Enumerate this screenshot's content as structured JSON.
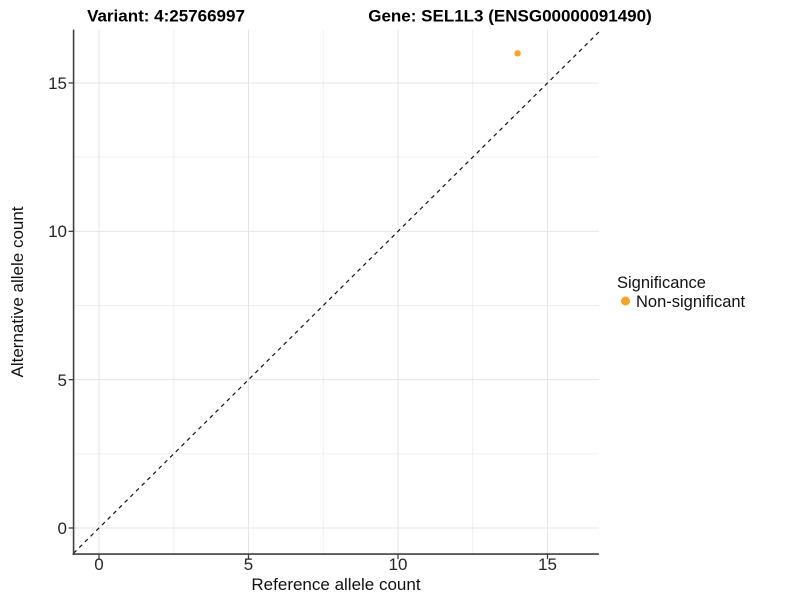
{
  "chart_data": {
    "type": "scatter",
    "title_left": "Variant: 4:25766997",
    "title_right": "Gene: SEL1L3 (ENSG00000091490)",
    "xlabel": "Reference allele count",
    "ylabel": "Alternative allele count",
    "xlim": [
      -0.85,
      16.72
    ],
    "ylim": [
      -0.88,
      16.8
    ],
    "x_ticks": [
      0,
      5,
      10,
      15
    ],
    "y_ticks": [
      0,
      5,
      10,
      15
    ],
    "x_minor_ticks": [
      2.5,
      7.5,
      12.5
    ],
    "y_minor_ticks": [
      2.5,
      7.5,
      12.5
    ],
    "grid": true,
    "identity_line": {
      "style": "dashed",
      "slope": 1,
      "intercept": 0,
      "color": "#111111"
    },
    "series": [
      {
        "name": "Non-significant",
        "color": "#F5A427",
        "points": [
          {
            "x": 14,
            "y": 16
          }
        ]
      }
    ],
    "legend": {
      "title": "Significance",
      "position": "right",
      "items": [
        {
          "label": "Non-significant",
          "color": "#F5A427"
        }
      ]
    }
  }
}
